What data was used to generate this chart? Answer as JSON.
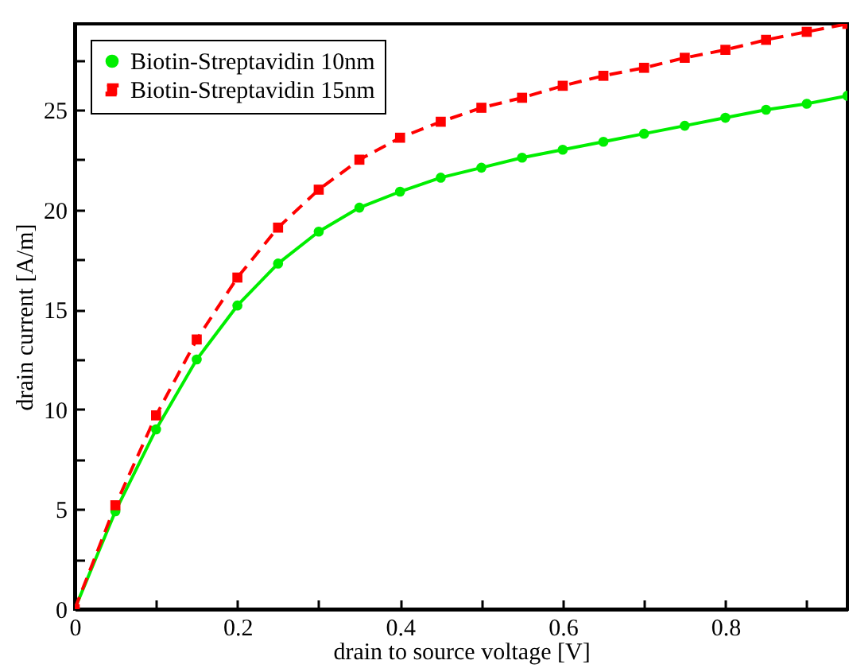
{
  "chart_data": {
    "type": "line",
    "xlabel": "drain to source voltage [V]",
    "ylabel": "drain current [A/m]",
    "x": [
      0,
      0.05,
      0.1,
      0.15,
      0.2,
      0.25,
      0.3,
      0.35,
      0.4,
      0.45,
      0.5,
      0.55,
      0.6,
      0.65,
      0.7,
      0.75,
      0.8,
      0.85,
      0.9,
      0.95
    ],
    "series": [
      {
        "name": "Biotin-Streptavidin 10nm",
        "color": "#00ee00",
        "marker": "circle",
        "line_style": "solid",
        "values": [
          0,
          4.9,
          9.0,
          12.5,
          15.2,
          17.3,
          18.9,
          20.1,
          20.9,
          21.6,
          22.1,
          22.6,
          23.0,
          23.4,
          23.8,
          24.2,
          24.6,
          25.0,
          25.3,
          25.7
        ]
      },
      {
        "name": "Biotin-Streptavidin 15nm",
        "color": "#ff0000",
        "marker": "square",
        "line_style": "dashed",
        "values": [
          0,
          5.2,
          9.7,
          13.5,
          16.6,
          19.1,
          21.0,
          22.5,
          23.6,
          24.4,
          25.1,
          25.6,
          26.2,
          26.7,
          27.1,
          27.6,
          28.0,
          28.5,
          28.9,
          29.3
        ]
      }
    ],
    "xlim": [
      0,
      0.95
    ],
    "ylim": [
      0,
      29.3
    ],
    "xticks": [
      0,
      {
        "value": 0.1,
        "label": null
      },
      0.2,
      {
        "value": 0.3,
        "label": null
      },
      0.4,
      {
        "value": 0.5,
        "label": null
      },
      0.6,
      {
        "value": 0.7,
        "label": null
      },
      0.8,
      {
        "value": 0.9,
        "label": null
      }
    ],
    "yticks": [
      0,
      {
        "value": 2.5,
        "label": null
      },
      5,
      {
        "value": 7.5,
        "label": null
      },
      10,
      {
        "value": 12.5,
        "label": null
      },
      15,
      {
        "value": 17.5,
        "label": null
      },
      20,
      {
        "value": 22.5,
        "label": null
      },
      25,
      {
        "value": 27.5,
        "label": null
      }
    ],
    "legend": "top left",
    "grid": false
  }
}
